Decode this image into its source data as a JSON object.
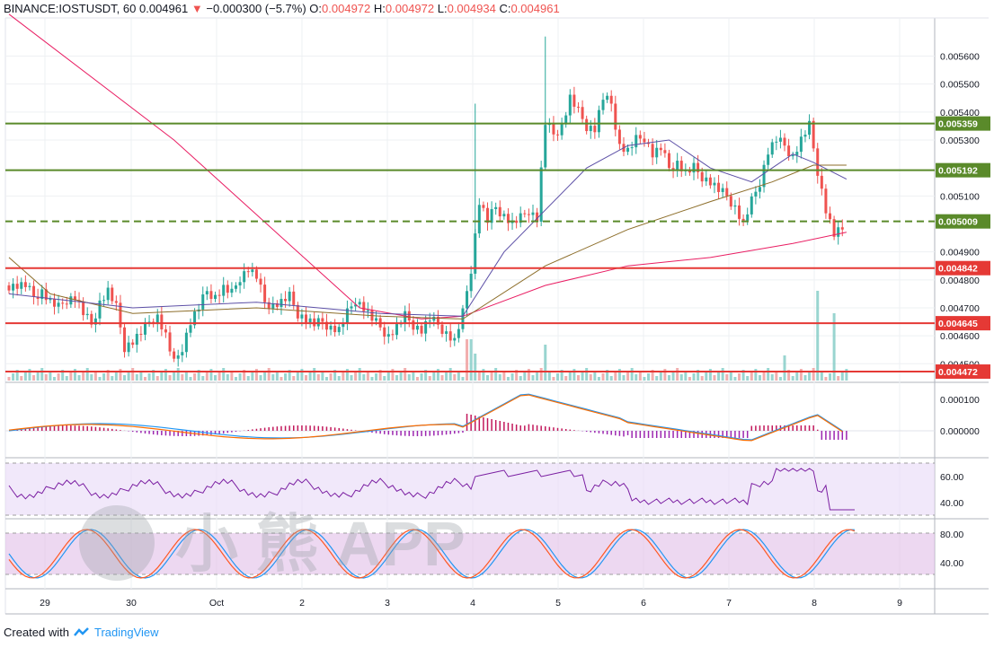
{
  "header": {
    "symbol": "BINANCE:IOSTUSDT, 60",
    "last": "0.004961",
    "arrow": "▼",
    "change": "−0.000300 (−5.7%)",
    "o_label": "O:",
    "o_value": "0.004972",
    "h_label": "H:",
    "h_value": "0.004972",
    "l_label": "L:",
    "l_value": "0.004934",
    "c_label": "C:",
    "c_value": "0.004961"
  },
  "footer": {
    "created_with": "Created with",
    "brand": "TradingView"
  },
  "watermark": "小 熊 APP",
  "chart_data": {
    "type": "candlestick",
    "price_axis_ticks": [
      "0.005600",
      "0.005500",
      "0.005400",
      "0.005300",
      "0.005100",
      "0.004900",
      "0.004800",
      "0.004700",
      "0.004600",
      "0.004500"
    ],
    "price_axis_values": [
      0.0056,
      0.0055,
      0.0054,
      0.0053,
      0.0051,
      0.0049,
      0.0048,
      0.0047,
      0.0046,
      0.0045
    ],
    "time_labels": [
      "29",
      "30",
      "Oct",
      "2",
      "3",
      "4",
      "5",
      "6",
      "7",
      "8",
      "9"
    ],
    "price_range": [
      0.00444,
      0.00573
    ],
    "levels": [
      {
        "value": 0.005359,
        "label": "0.005359",
        "color": "#5a8a2a",
        "style": "solid"
      },
      {
        "value": 0.005192,
        "label": "0.005192",
        "color": "#5a8a2a",
        "style": "solid"
      },
      {
        "value": 0.005009,
        "label": "0.005009",
        "color": "#5a8a2a",
        "style": "dashed"
      },
      {
        "value": 0.004842,
        "label": "0.004842",
        "color": "#e53935",
        "style": "solid"
      },
      {
        "value": 0.004645,
        "label": "0.004645",
        "color": "#e53935",
        "style": "solid"
      },
      {
        "value": 0.004472,
        "label": "0.004472",
        "color": "#e53935",
        "style": "solid"
      }
    ],
    "close_path": [
      [
        0,
        0.00478
      ],
      [
        4,
        0.00478
      ],
      [
        6,
        0.00474
      ],
      [
        8,
        0.00476
      ],
      [
        10,
        0.00472
      ],
      [
        12,
        0.0047
      ],
      [
        14,
        0.00473
      ],
      [
        16,
        0.00474
      ],
      [
        18,
        0.00468
      ],
      [
        20,
        0.00464
      ],
      [
        22,
        0.00472
      ],
      [
        24,
        0.00476
      ],
      [
        26,
        0.0047
      ],
      [
        28,
        0.00456
      ],
      [
        30,
        0.00458
      ],
      [
        32,
        0.00461
      ],
      [
        34,
        0.00465
      ],
      [
        36,
        0.00467
      ],
      [
        38,
        0.0046
      ],
      [
        40,
        0.0045
      ],
      [
        42,
        0.00456
      ],
      [
        44,
        0.00465
      ],
      [
        46,
        0.0047
      ],
      [
        48,
        0.00476
      ],
      [
        50,
        0.00474
      ],
      [
        52,
        0.00477
      ],
      [
        54,
        0.00475
      ],
      [
        56,
        0.00481
      ],
      [
        58,
        0.00484
      ],
      [
        60,
        0.00481
      ],
      [
        62,
        0.00472
      ],
      [
        64,
        0.00471
      ],
      [
        66,
        0.00472
      ],
      [
        68,
        0.00474
      ],
      [
        70,
        0.00468
      ],
      [
        72,
        0.00466
      ],
      [
        74,
        0.00464
      ],
      [
        76,
        0.00465
      ],
      [
        78,
        0.00463
      ],
      [
        80,
        0.00462
      ],
      [
        82,
        0.00468
      ],
      [
        84,
        0.00473
      ],
      [
        86,
        0.0047
      ],
      [
        88,
        0.00466
      ],
      [
        90,
        0.00463
      ],
      [
        92,
        0.0046
      ],
      [
        94,
        0.00463
      ],
      [
        96,
        0.00467
      ],
      [
        98,
        0.00464
      ],
      [
        100,
        0.00462
      ],
      [
        102,
        0.00466
      ],
      [
        104,
        0.00464
      ],
      [
        106,
        0.00461
      ],
      [
        108,
        0.00458
      ],
      [
        110,
        0.00468
      ],
      [
        112,
        0.00484
      ],
      [
        114,
        0.00508
      ],
      [
        116,
        0.00501
      ],
      [
        118,
        0.00506
      ],
      [
        120,
        0.00503
      ],
      [
        122,
        0.005
      ],
      [
        124,
        0.00502
      ],
      [
        126,
        0.00505
      ],
      [
        128,
        0.00502
      ],
      [
        130,
        0.00536
      ],
      [
        132,
        0.00532
      ],
      [
        134,
        0.00535
      ],
      [
        136,
        0.00545
      ],
      [
        138,
        0.0054
      ],
      [
        140,
        0.00535
      ],
      [
        142,
        0.00534
      ],
      [
        144,
        0.00545
      ],
      [
        146,
        0.00543
      ],
      [
        148,
        0.00528
      ],
      [
        150,
        0.00526
      ],
      [
        152,
        0.0053
      ],
      [
        154,
        0.00531
      ],
      [
        156,
        0.00525
      ],
      [
        158,
        0.00527
      ],
      [
        160,
        0.0052
      ],
      [
        162,
        0.00522
      ],
      [
        164,
        0.00518
      ],
      [
        166,
        0.0052
      ],
      [
        168,
        0.00517
      ],
      [
        170,
        0.00515
      ],
      [
        172,
        0.00512
      ],
      [
        174,
        0.0051
      ],
      [
        176,
        0.00506
      ],
      [
        178,
        0.005
      ],
      [
        180,
        0.00508
      ],
      [
        182,
        0.00515
      ],
      [
        184,
        0.00526
      ],
      [
        186,
        0.0053
      ],
      [
        188,
        0.00528
      ],
      [
        190,
        0.00524
      ],
      [
        192,
        0.0053
      ],
      [
        194,
        0.00535
      ],
      [
        196,
        0.00519
      ],
      [
        198,
        0.00505
      ],
      [
        200,
        0.00496
      ],
      [
        202,
        0.00498
      ],
      [
        203,
        0.004961
      ]
    ],
    "ma_fast": [
      [
        0,
        0.00475
      ],
      [
        30,
        0.0047
      ],
      [
        60,
        0.00472
      ],
      [
        90,
        0.00468
      ],
      [
        110,
        0.00467
      ],
      [
        120,
        0.0049
      ],
      [
        140,
        0.0052
      ],
      [
        150,
        0.00528
      ],
      [
        160,
        0.0053
      ],
      [
        170,
        0.0052
      ],
      [
        180,
        0.00515
      ],
      [
        190,
        0.00525
      ],
      [
        195,
        0.00522
      ],
      [
        203,
        0.00516
      ]
    ],
    "ma_mid": [
      [
        0,
        0.00488
      ],
      [
        10,
        0.00475
      ],
      [
        30,
        0.00468
      ],
      [
        60,
        0.0047
      ],
      [
        90,
        0.00467
      ],
      [
        110,
        0.00466
      ],
      [
        130,
        0.00485
      ],
      [
        150,
        0.00498
      ],
      [
        170,
        0.00508
      ],
      [
        185,
        0.00515
      ],
      [
        195,
        0.00521
      ],
      [
        203,
        0.00521
      ]
    ],
    "ma_slow": [
      [
        0,
        0.00575
      ],
      [
        40,
        0.0053
      ],
      [
        70,
        0.0049
      ],
      [
        85,
        0.0047
      ],
      [
        100,
        0.00466
      ],
      [
        110,
        0.00467
      ],
      [
        130,
        0.00478
      ],
      [
        150,
        0.00485
      ],
      [
        170,
        0.00488
      ],
      [
        190,
        0.00493
      ],
      [
        203,
        0.00497
      ]
    ],
    "macd_ticks": [
      "0.000100",
      "0.000000"
    ],
    "rsi_ticks": [
      "60.00",
      "40.00"
    ],
    "stoch_ticks": [
      "80.00",
      "40.00"
    ]
  }
}
